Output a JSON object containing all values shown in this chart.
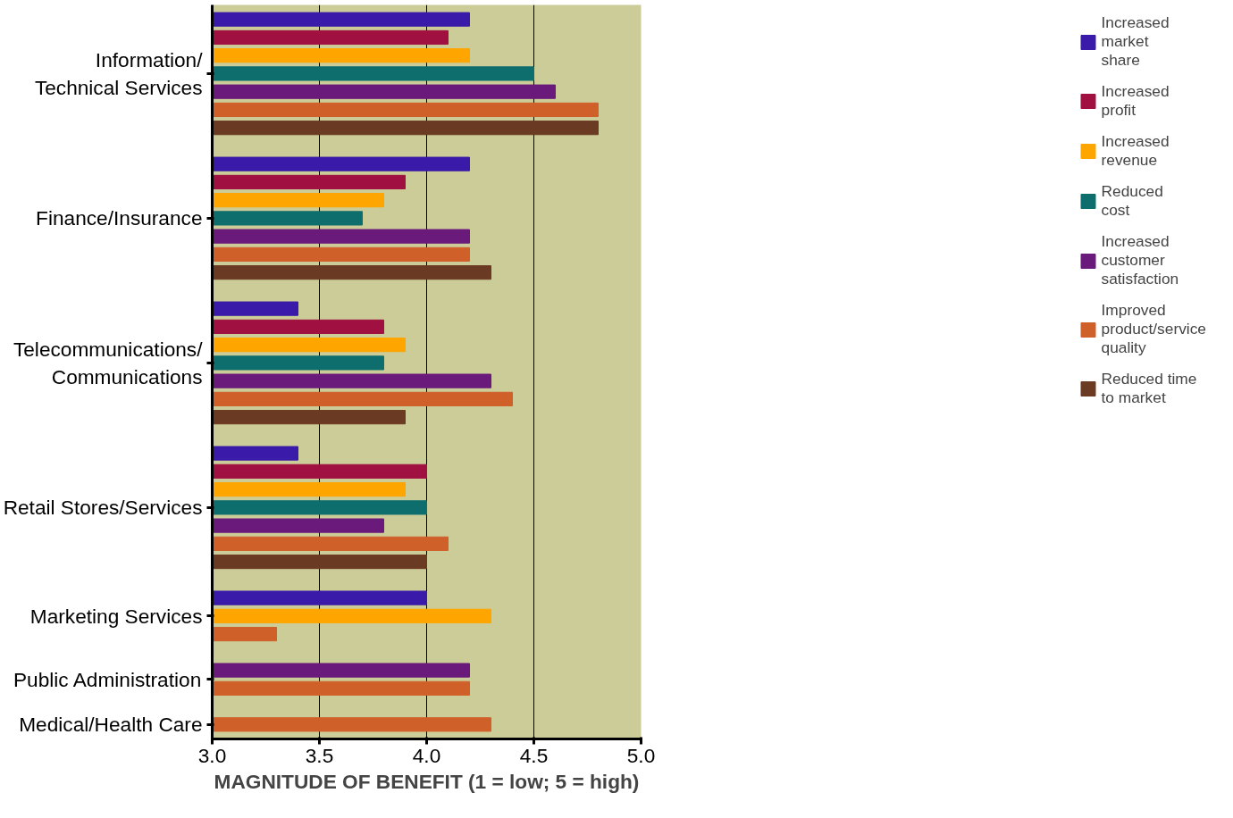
{
  "chart_data": {
    "type": "bar",
    "orientation": "horizontal",
    "xlabel": "MAGNITUDE OF BENEFIT (1 = low; 5 = high)",
    "categories": [
      "Information/\nTechnical Services",
      "Finance/Insurance",
      "Telecommunications/\nCommunications",
      "Retail Stores/Services",
      "Marketing Services",
      "Public Administration",
      "Medical/Health Care"
    ],
    "series": [
      {
        "name": "Increased\nmarket\nshare",
        "color": "#3a1aa8",
        "values": [
          4.2,
          4.2,
          3.4,
          3.4,
          4.0,
          null,
          null
        ]
      },
      {
        "name": "Increased\nprofit",
        "color": "#a01040",
        "values": [
          4.1,
          3.9,
          3.8,
          4.0,
          null,
          null,
          null
        ]
      },
      {
        "name": "Increased\nrevenue",
        "color": "#ffa500",
        "values": [
          4.2,
          3.8,
          3.9,
          3.9,
          4.3,
          null,
          null
        ]
      },
      {
        "name": "Reduced\ncost",
        "color": "#0e6e6e",
        "values": [
          4.5,
          3.7,
          3.8,
          4.0,
          null,
          null,
          null
        ]
      },
      {
        "name": "Increased\ncustomer\nsatisfaction",
        "color": "#6a1a7a",
        "values": [
          4.6,
          4.2,
          4.3,
          3.8,
          null,
          4.2,
          null
        ]
      },
      {
        "name": "Improved\nproduct/service\nquality",
        "color": "#d0602a",
        "values": [
          4.8,
          4.2,
          4.4,
          4.1,
          3.3,
          4.2,
          4.3
        ]
      },
      {
        "name": "Reduced time\nto market",
        "color": "#6b3a22",
        "values": [
          4.8,
          4.3,
          3.9,
          4.0,
          null,
          null,
          null
        ]
      }
    ],
    "xlim": [
      3.0,
      5.0
    ],
    "xticks": [
      {
        "value": 3.0,
        "label": "3.0"
      },
      {
        "value": 3.5,
        "label": "3.5"
      },
      {
        "value": 4.0,
        "label": "4.0"
      },
      {
        "value": 4.5,
        "label": "4.5"
      },
      {
        "value": 5.0,
        "label": "5.0"
      }
    ],
    "grid": "x",
    "legend": "right"
  }
}
